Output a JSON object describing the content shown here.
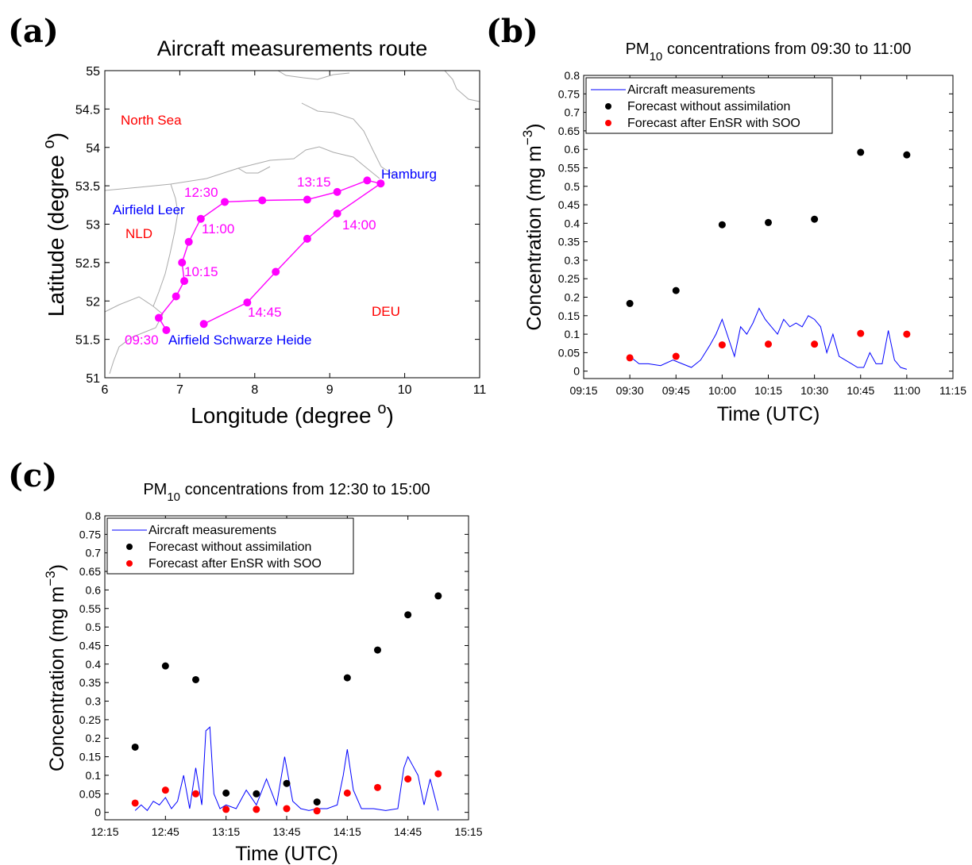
{
  "panels": {
    "a": {
      "letter": "(a)"
    },
    "b": {
      "letter": "(b)"
    },
    "c": {
      "letter": "(c)"
    }
  },
  "chart_data": [
    {
      "type": "line",
      "panel": "(a)",
      "title": "Aircraft measurements route",
      "xlabel": "Longitude (degree",
      "xlabel_sup": "o",
      "xlabel_close": ")",
      "ylabel": "Latitude (degree",
      "ylabel_sup": "o",
      "ylabel_close": ")",
      "xlim": [
        6,
        11
      ],
      "ylim": [
        51,
        55
      ],
      "xticks": [
        "6",
        "7",
        "8",
        "9",
        "10",
        "11"
      ],
      "yticks": [
        "51",
        "51.5",
        "52",
        "52.5",
        "53",
        "53.5",
        "54",
        "54.5",
        "55"
      ],
      "colors": {
        "route": "#ff00ff",
        "region": "#ff0000",
        "place": "#0000ff",
        "coast": "#aaaaaa"
      },
      "route": [
        {
          "x": 6.82,
          "y": 51.62
        },
        {
          "x": 6.72,
          "y": 51.78
        },
        {
          "x": 6.95,
          "y": 52.06
        },
        {
          "x": 7.06,
          "y": 52.26
        },
        {
          "x": 7.03,
          "y": 52.5
        },
        {
          "x": 7.12,
          "y": 52.77
        },
        {
          "x": 7.28,
          "y": 53.07
        },
        {
          "x": 7.6,
          "y": 53.29
        },
        {
          "x": 8.1,
          "y": 53.31
        },
        {
          "x": 8.7,
          "y": 53.32
        },
        {
          "x": 9.1,
          "y": 53.42
        },
        {
          "x": 9.5,
          "y": 53.57
        },
        {
          "x": 9.68,
          "y": 53.53
        },
        {
          "x": 9.1,
          "y": 53.14
        },
        {
          "x": 8.7,
          "y": 52.81
        },
        {
          "x": 8.28,
          "y": 52.38
        },
        {
          "x": 7.9,
          "y": 51.98
        },
        {
          "x": 7.32,
          "y": 51.7
        }
      ],
      "time_labels": [
        "12:30",
        "13:15",
        "11:00",
        "14:00",
        "10:15",
        "14:45",
        "09:30"
      ],
      "region_labels": [
        "North Sea",
        "NLD",
        "DEU"
      ],
      "place_labels": [
        "Hamburg",
        "Airfield Leer",
        "Airfield Schwarze Heide"
      ]
    },
    {
      "type": "scatter",
      "panel": "(b)",
      "title_main": "PM",
      "title_sub": "10",
      "title_rest": " concentrations from 09:30 to 11:00",
      "xlabel": "Time  (UTC)",
      "ylabel": "Concentration  (mg m",
      "ylabel_sup": "−3",
      "ylabel_close": ")",
      "xlim": [
        0,
        120
      ],
      "ylim": [
        -0.02,
        0.8
      ],
      "xticks": [
        "09:15",
        "09:30",
        "09:45",
        "10:00",
        "10:15",
        "10:30",
        "10:45",
        "11:00",
        "11:15"
      ],
      "yticks": [
        "0",
        "0.05",
        "0.1",
        "0.15",
        "0.2",
        "0.25",
        "0.3",
        "0.35",
        "0.4",
        "0.45",
        "0.5",
        "0.55",
        "0.6",
        "0.65",
        "0.7",
        "0.75",
        "0.8"
      ],
      "legend": [
        "Aircraft measurements",
        "Forecast without assimilation",
        "Forecast after EnSR with SOO"
      ],
      "series": [
        {
          "name": "Forecast without assimilation",
          "color": "#000000",
          "x": [
            "09:30",
            "09:45",
            "10:00",
            "10:15",
            "10:30",
            "10:45",
            "11:00"
          ],
          "values": [
            0.183,
            0.218,
            0.396,
            0.402,
            0.411,
            0.592,
            0.585
          ]
        },
        {
          "name": "Forecast after EnSR with SOO",
          "color": "#ff0000",
          "x": [
            "09:30",
            "09:45",
            "10:00",
            "10:15",
            "10:30",
            "10:45",
            "11:00"
          ],
          "values": [
            0.036,
            0.04,
            0.071,
            0.073,
            0.073,
            0.102,
            0.1
          ]
        },
        {
          "name": "Aircraft measurements",
          "color": "#0000ff",
          "x": [
            "09:30",
            "09:33",
            "09:36",
            "09:40",
            "09:44",
            "09:47",
            "09:50",
            "09:53",
            "09:56",
            "09:58",
            "10:00",
            "10:02",
            "10:04",
            "10:06",
            "10:08",
            "10:10",
            "10:12",
            "10:14",
            "10:16",
            "10:18",
            "10:20",
            "10:22",
            "10:24",
            "10:26",
            "10:28",
            "10:30",
            "10:32",
            "10:34",
            "10:36",
            "10:38",
            "10:40",
            "10:42",
            "10:44",
            "10:46",
            "10:48",
            "10:50",
            "10:52",
            "10:54",
            "10:56",
            "10:58",
            "11:00"
          ],
          "values": [
            0.04,
            0.02,
            0.02,
            0.015,
            0.03,
            0.02,
            0.01,
            0.03,
            0.07,
            0.1,
            0.14,
            0.09,
            0.04,
            0.12,
            0.1,
            0.13,
            0.17,
            0.14,
            0.12,
            0.1,
            0.14,
            0.12,
            0.13,
            0.12,
            0.15,
            0.14,
            0.12,
            0.05,
            0.1,
            0.04,
            0.03,
            0.02,
            0.01,
            0.01,
            0.05,
            0.02,
            0.02,
            0.11,
            0.03,
            0.01,
            0.005
          ]
        }
      ]
    },
    {
      "type": "scatter",
      "panel": "(c)",
      "title_main": "PM",
      "title_sub": "10",
      "title_rest": " concentrations from 12:30 to 15:00",
      "xlabel": "Time  (UTC)",
      "ylabel": "Concentration  (mg m",
      "ylabel_sup": "−3",
      "ylabel_close": ")",
      "xlim": [
        0,
        180
      ],
      "ylim": [
        -0.02,
        0.8
      ],
      "xticks": [
        "12:15",
        "12:45",
        "13:15",
        "13:45",
        "14:15",
        "14:45",
        "15:15"
      ],
      "yticks": [
        "0",
        "0.05",
        "0.1",
        "0.15",
        "0.2",
        "0.25",
        "0.3",
        "0.35",
        "0.4",
        "0.45",
        "0.5",
        "0.55",
        "0.6",
        "0.65",
        "0.7",
        "0.75",
        "0.8"
      ],
      "legend": [
        "Aircraft measurements",
        "Forecast without assimilation",
        "Forecast after EnSR with SOO"
      ],
      "series": [
        {
          "name": "Forecast without assimilation",
          "color": "#000000",
          "x": [
            "12:30",
            "12:45",
            "13:00",
            "13:15",
            "13:30",
            "13:45",
            "14:00",
            "14:15",
            "14:30",
            "14:45",
            "15:00"
          ],
          "values": [
            0.176,
            0.395,
            0.358,
            0.052,
            0.05,
            0.078,
            0.028,
            0.363,
            0.438,
            0.533,
            0.584
          ]
        },
        {
          "name": "Forecast after EnSR with SOO",
          "color": "#ff0000",
          "x": [
            "12:30",
            "12:45",
            "13:00",
            "13:15",
            "13:30",
            "13:45",
            "14:00",
            "14:15",
            "14:30",
            "14:45",
            "15:00"
          ],
          "values": [
            0.025,
            0.06,
            0.05,
            0.008,
            0.008,
            0.01,
            0.004,
            0.052,
            0.067,
            0.09,
            0.104
          ]
        },
        {
          "name": "Aircraft measurements",
          "color": "#0000ff",
          "x": [
            "12:30",
            "12:33",
            "12:36",
            "12:39",
            "12:42",
            "12:45",
            "12:48",
            "12:51",
            "12:54",
            "12:57",
            "13:00",
            "13:03",
            "13:05",
            "13:07",
            "13:09",
            "13:12",
            "13:15",
            "13:20",
            "13:25",
            "13:30",
            "13:35",
            "13:40",
            "13:44",
            "13:48",
            "13:52",
            "13:56",
            "14:00",
            "14:05",
            "14:10",
            "14:13",
            "14:15",
            "14:18",
            "14:22",
            "14:28",
            "14:34",
            "14:40",
            "14:43",
            "14:45",
            "14:47",
            "14:50",
            "14:53",
            "14:56",
            "15:00"
          ],
          "values": [
            0.005,
            0.02,
            0.005,
            0.03,
            0.02,
            0.04,
            0.01,
            0.03,
            0.1,
            0.01,
            0.12,
            0.02,
            0.22,
            0.23,
            0.05,
            0.01,
            0.02,
            0.01,
            0.06,
            0.02,
            0.09,
            0.02,
            0.15,
            0.03,
            0.01,
            0.005,
            0.01,
            0.01,
            0.02,
            0.1,
            0.17,
            0.06,
            0.01,
            0.01,
            0.005,
            0.01,
            0.12,
            0.15,
            0.13,
            0.1,
            0.02,
            0.09,
            0.005
          ]
        }
      ]
    }
  ]
}
